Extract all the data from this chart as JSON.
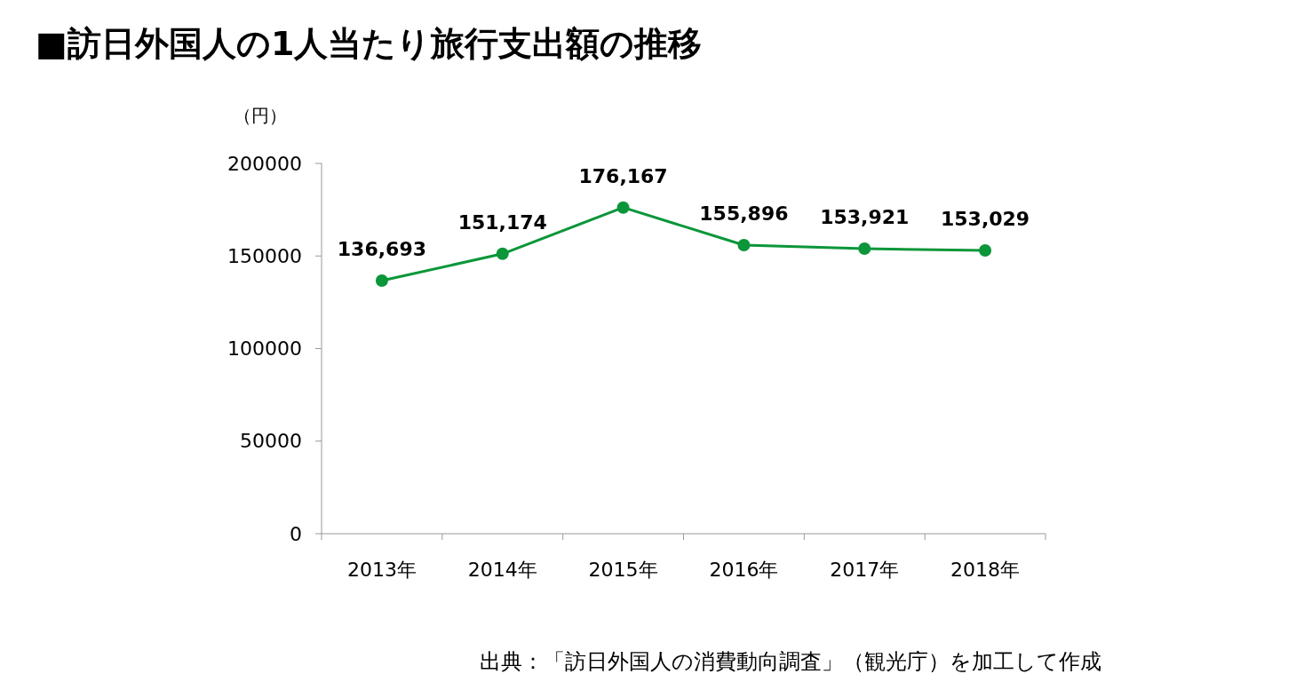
{
  "chart_data": {
    "type": "line",
    "title": "■訪日外国人の1人当たり旅行支出額の推移",
    "ylabel": "（円）",
    "categories": [
      "2013年",
      "2014年",
      "2015年",
      "2016年",
      "2017年",
      "2018年"
    ],
    "series": [
      {
        "color": "#0b9639",
        "values": [
          136693,
          151174,
          176167,
          155896,
          153921,
          153029
        ],
        "value_labels": [
          "136,693",
          "151,174",
          "176,167",
          "155,896",
          "153,921",
          "153,029"
        ]
      }
    ],
    "ylim": [
      0,
      200000
    ],
    "yticks": [
      0,
      50000,
      100000,
      150000,
      200000
    ],
    "grid": false,
    "marker": "circle",
    "line_style": "solid",
    "annotations": [
      "出典：「訪日外国人の消費動向調査」（観光庁）を加工して作成"
    ]
  }
}
